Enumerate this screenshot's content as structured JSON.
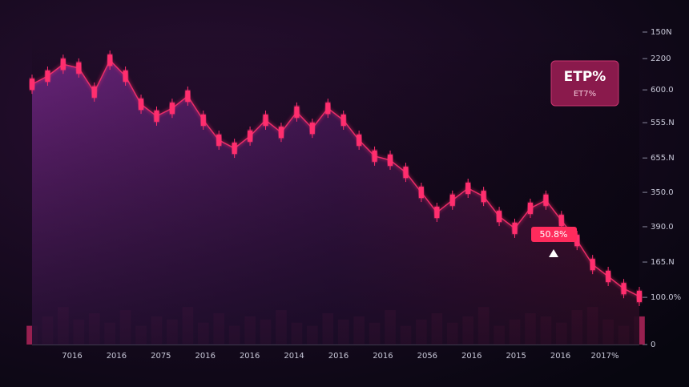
{
  "chart_data": {
    "type": "candlestick",
    "ylim": [
      0,
      100
    ],
    "yticks": [
      {
        "value": 100,
        "label": "150N"
      },
      {
        "value": 91.5,
        "label": "2200"
      },
      {
        "value": 81.5,
        "label": "600.0"
      },
      {
        "value": 71,
        "label": "555.N"
      },
      {
        "value": 59.7,
        "label": "655.N"
      },
      {
        "value": 48.7,
        "label": "350.0"
      },
      {
        "value": 37.7,
        "label": "390.0"
      },
      {
        "value": 26.4,
        "label": "165.N"
      },
      {
        "value": 15.1,
        "label": "100.0%"
      },
      0
    ],
    "x_labels": [
      "7016",
      "2016",
      "2075",
      "2016",
      "2016",
      "2014",
      "2016",
      "2016",
      "2056",
      "2016",
      "2015",
      "2016",
      "2017%"
    ],
    "series": [
      {
        "name": "price",
        "color": "#ff2f6e",
        "values": [
          83.3,
          85.9,
          89.7,
          88.5,
          80.8,
          91.0,
          85.9,
          76.9,
          73.1,
          75.6,
          79.5,
          71.8,
          65.4,
          62.8,
          66.7,
          71.8,
          67.9,
          74.4,
          69.2,
          75.6,
          71.8,
          65.4,
          60.3,
          59.0,
          55.1,
          48.7,
          42.3,
          46.2,
          50.0,
          47.4,
          41.0,
          37.2,
          43.6,
          46.2,
          39.7,
          33.3,
          25.6,
          21.8,
          17.9,
          15.4
        ]
      },
      {
        "name": "volume",
        "color": "#b0245a",
        "values": [
          6,
          9,
          12,
          8,
          10,
          7,
          11,
          6,
          9,
          8,
          12,
          7,
          10,
          6,
          9,
          8,
          11,
          7,
          6,
          10,
          8,
          9,
          7,
          11,
          6,
          8,
          10,
          7,
          9,
          12,
          6,
          8,
          10,
          9,
          7,
          11,
          12,
          8,
          6,
          9
        ]
      }
    ],
    "annotations": [
      {
        "title": "ETP%",
        "subtitle": "ET7%"
      },
      {
        "label": "50.8%"
      }
    ]
  }
}
